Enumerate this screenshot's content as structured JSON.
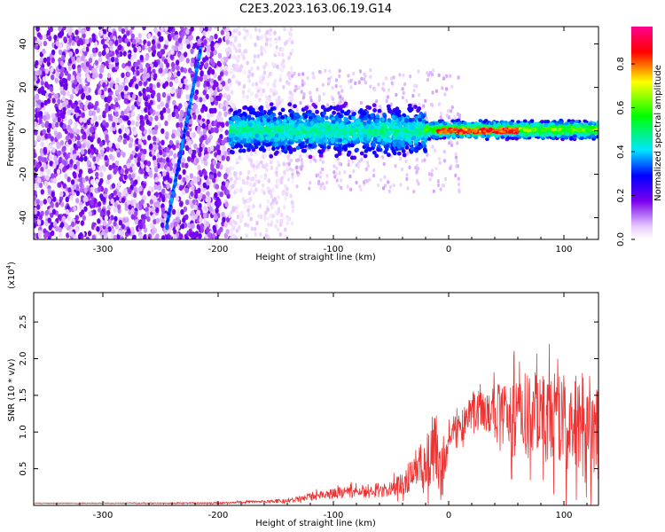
{
  "title": "C2E3.2023.163.06.19.G14",
  "chart_data": [
    {
      "type": "heatmap",
      "xlabel": "Height of straight line (km)",
      "ylabel": "Frequency (Hz)",
      "xlim": [
        -360,
        130
      ],
      "ylim": [
        -50,
        48
      ],
      "xticks": [
        -300,
        -200,
        -100,
        0,
        100
      ],
      "xtick_labels": [
        "-300",
        "-200",
        "-100",
        "0",
        "100"
      ],
      "yticks": [
        -40,
        -20,
        0,
        20,
        40
      ],
      "ytick_labels": [
        "-40",
        "-20",
        "0",
        "20",
        "40"
      ],
      "colorbar": {
        "label": "Normalized spectral amplitude",
        "range": [
          0,
          0.97
        ],
        "ticks": [
          0.0,
          0.2,
          0.4,
          0.6,
          0.8
        ],
        "tick_labels": [
          "0.0",
          "0.2",
          "0.4",
          "0.6",
          "0.8"
        ],
        "colormap": "rainbow (white-violet-blue-cyan-green-yellow-red-magenta)"
      },
      "regions": [
        {
          "feature": "broadband noise",
          "x_range": [
            -360,
            -190
          ],
          "freq_range": [
            -50,
            48
          ],
          "amplitude": 0.1
        },
        {
          "feature": "sparse noise",
          "x_range": [
            -190,
            -135
          ],
          "freq_range": [
            -50,
            48
          ],
          "amplitude": 0.03
        },
        {
          "feature": "sloped line",
          "x_range": [
            -245,
            -215
          ],
          "freq_range": [
            -45,
            38
          ],
          "amplitude": 0.15
        },
        {
          "feature": "band",
          "x_range": [
            -190,
            -20
          ],
          "freq_range": [
            -15,
            12
          ],
          "amplitude": 0.35
        },
        {
          "feature": "narrow band",
          "x_range": [
            -20,
            130
          ],
          "freq_range": [
            -4,
            5
          ],
          "amplitude": 0.7
        },
        {
          "feature": "peak band",
          "x_range": [
            -10,
            60
          ],
          "freq_range": [
            -1,
            1
          ],
          "amplitude": 0.85
        }
      ],
      "grid": false
    },
    {
      "type": "line",
      "color": "#ee3333",
      "xlabel": "Height of straight line (km)",
      "ylabel": "SNR (10 * v/v)",
      "scale_label": "(x10",
      "scale_exponent": "4",
      "scale_suffix": ")",
      "xlim": [
        -360,
        130
      ],
      "ylim": [
        0,
        2.9
      ],
      "xticks": [
        -300,
        -200,
        -100,
        0,
        100
      ],
      "xtick_labels": [
        "-300",
        "-200",
        "-100",
        "0",
        "100"
      ],
      "yticks": [
        0.5,
        1.0,
        1.5,
        2.0,
        2.5
      ],
      "ytick_labels": [
        "0.5",
        "1.0",
        "1.5",
        "2.0",
        "2.5"
      ],
      "envelope": {
        "x": [
          -360,
          -300,
          -200,
          -170,
          -140,
          -120,
          -100,
          -80,
          -60,
          -40,
          -30,
          -20,
          -10,
          -5,
          0,
          10,
          20,
          30,
          50,
          55,
          70,
          80,
          100,
          110,
          120,
          130
        ],
        "mean": [
          0.03,
          0.03,
          0.03,
          0.05,
          0.06,
          0.12,
          0.16,
          0.2,
          0.18,
          0.3,
          0.45,
          0.6,
          0.75,
          0.5,
          1.0,
          1.05,
          1.25,
          1.3,
          1.3,
          1.2,
          1.25,
          1.2,
          1.15,
          1.05,
          1.0,
          1.0
        ],
        "amplitude": [
          0.01,
          0.01,
          0.02,
          0.03,
          0.05,
          0.08,
          0.12,
          0.15,
          0.12,
          0.25,
          0.45,
          0.6,
          0.85,
          0.7,
          0.3,
          0.35,
          0.45,
          0.5,
          0.6,
          0.9,
          0.95,
          1.05,
          1.1,
          1.3,
          1.3,
          1.2
        ]
      },
      "grid": false
    }
  ]
}
